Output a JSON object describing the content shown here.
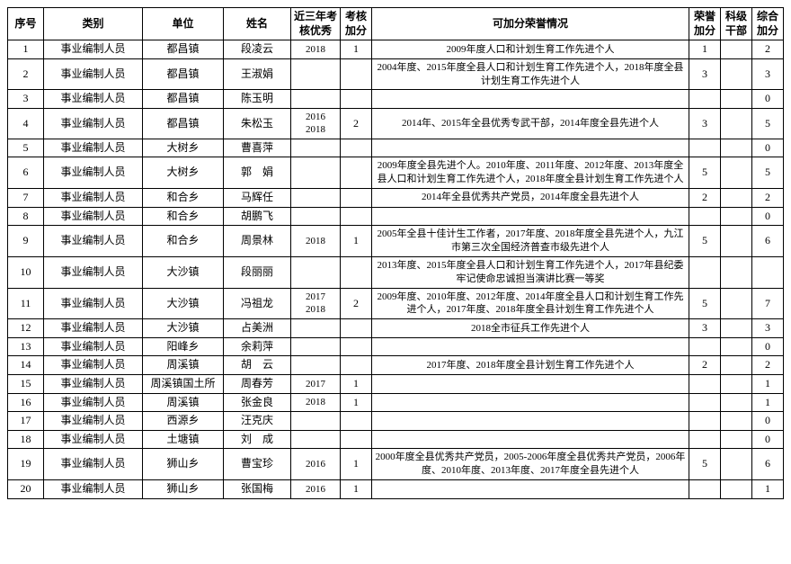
{
  "headers": {
    "seq": "序号",
    "category": "类别",
    "unit": "单位",
    "name": "姓名",
    "years": "近三年考核优秀",
    "score": "考核加分",
    "honor": "可加分荣誉情况",
    "bonus1": "荣誉加分",
    "bonus2": "科级干部",
    "bonus3": "综合加分"
  },
  "rows": [
    {
      "seq": "1",
      "category": "事业编制人员",
      "unit": "都昌镇",
      "name": "段凌云",
      "years": "2018",
      "score": "1",
      "honor": "2009年度人口和计划生育工作先进个人",
      "bonus1": "1",
      "bonus2": "",
      "bonus3": "2"
    },
    {
      "seq": "2",
      "category": "事业编制人员",
      "unit": "都昌镇",
      "name": "王淑娟",
      "years": "",
      "score": "",
      "honor": "2004年度、2015年度全县人口和计划生育工作先进个人，2018年度全县计划生育工作先进个人",
      "bonus1": "3",
      "bonus2": "",
      "bonus3": "3"
    },
    {
      "seq": "3",
      "category": "事业编制人员",
      "unit": "都昌镇",
      "name": "陈玉明",
      "years": "",
      "score": "",
      "honor": "",
      "bonus1": "",
      "bonus2": "",
      "bonus3": "0"
    },
    {
      "seq": "4",
      "category": "事业编制人员",
      "unit": "都昌镇",
      "name": "朱松玉",
      "years": "2016\n2018",
      "score": "2",
      "honor": "2014年、2015年全县优秀专武干部，2014年度全县先进个人",
      "bonus1": "3",
      "bonus2": "",
      "bonus3": "5"
    },
    {
      "seq": "5",
      "category": "事业编制人员",
      "unit": "大树乡",
      "name": "曹喜萍",
      "years": "",
      "score": "",
      "honor": "",
      "bonus1": "",
      "bonus2": "",
      "bonus3": "0"
    },
    {
      "seq": "6",
      "category": "事业编制人员",
      "unit": "大树乡",
      "name": "郭　娟",
      "years": "",
      "score": "",
      "honor": "2009年度全县先进个人。2010年度、2011年度、2012年度、2013年度全县人口和计划生育工作先进个人，2018年度全县计划生育工作先进个人",
      "bonus1": "5",
      "bonus2": "",
      "bonus3": "5"
    },
    {
      "seq": "7",
      "category": "事业编制人员",
      "unit": "和合乡",
      "name": "马辉任",
      "years": "",
      "score": "",
      "honor": "2014年全县优秀共产党员，2014年度全县先进个人",
      "bonus1": "2",
      "bonus2": "",
      "bonus3": "2"
    },
    {
      "seq": "8",
      "category": "事业编制人员",
      "unit": "和合乡",
      "name": "胡鹏飞",
      "years": "",
      "score": "",
      "honor": "",
      "bonus1": "",
      "bonus2": "",
      "bonus3": "0"
    },
    {
      "seq": "9",
      "category": "事业编制人员",
      "unit": "和合乡",
      "name": "周景林",
      "years": "2018",
      "score": "1",
      "honor": "2005年全县十佳计生工作者，2017年度、2018年度全县先进个人，九江市第三次全国经济普查市级先进个人",
      "bonus1": "5",
      "bonus2": "",
      "bonus3": "6"
    },
    {
      "seq": "10",
      "category": "事业编制人员",
      "unit": "大沙镇",
      "name": "段丽丽",
      "years": "",
      "score": "",
      "honor": "2013年度、2015年度全县人口和计划生育工作先进个人，2017年县纪委牢记使命忠诚担当演讲比赛一等奖",
      "bonus1": "",
      "bonus2": "",
      "bonus3": ""
    },
    {
      "seq": "11",
      "category": "事业编制人员",
      "unit": "大沙镇",
      "name": "冯祖龙",
      "years": "2017\n2018",
      "score": "2",
      "honor": "2009年度、2010年度、2012年度、2014年度全县人口和计划生育工作先进个人，2017年度、2018年度全县计划生育工作先进个人",
      "bonus1": "5",
      "bonus2": "",
      "bonus3": "7"
    },
    {
      "seq": "12",
      "category": "事业编制人员",
      "unit": "大沙镇",
      "name": "占美洲",
      "years": "",
      "score": "",
      "honor": "2018全市征兵工作先进个人",
      "bonus1": "3",
      "bonus2": "",
      "bonus3": "3"
    },
    {
      "seq": "13",
      "category": "事业编制人员",
      "unit": "阳峰乡",
      "name": "余莉萍",
      "years": "",
      "score": "",
      "honor": "",
      "bonus1": "",
      "bonus2": "",
      "bonus3": "0"
    },
    {
      "seq": "14",
      "category": "事业编制人员",
      "unit": "周溪镇",
      "name": "胡　云",
      "years": "",
      "score": "",
      "honor": "2017年度、2018年度全县计划生育工作先进个人",
      "bonus1": "2",
      "bonus2": "",
      "bonus3": "2"
    },
    {
      "seq": "15",
      "category": "事业编制人员",
      "unit": "周溪镇国土所",
      "name": "周春芳",
      "years": "2017",
      "score": "1",
      "honor": "",
      "bonus1": "",
      "bonus2": "",
      "bonus3": "1"
    },
    {
      "seq": "16",
      "category": "事业编制人员",
      "unit": "周溪镇",
      "name": "张金良",
      "years": "2018",
      "score": "1",
      "honor": "",
      "bonus1": "",
      "bonus2": "",
      "bonus3": "1"
    },
    {
      "seq": "17",
      "category": "事业编制人员",
      "unit": "西源乡",
      "name": "汪克庆",
      "years": "",
      "score": "",
      "honor": "",
      "bonus1": "",
      "bonus2": "",
      "bonus3": "0"
    },
    {
      "seq": "18",
      "category": "事业编制人员",
      "unit": "土塘镇",
      "name": "刘　成",
      "years": "",
      "score": "",
      "honor": "",
      "bonus1": "",
      "bonus2": "",
      "bonus3": "0"
    },
    {
      "seq": "19",
      "category": "事业编制人员",
      "unit": "狮山乡",
      "name": "曹宝珍",
      "years": "2016",
      "score": "1",
      "honor": "2000年度全县优秀共产党员，2005-2006年度全县优秀共产党员，2006年度、2010年度、2013年度、2017年度全县先进个人",
      "bonus1": "5",
      "bonus2": "",
      "bonus3": "6"
    },
    {
      "seq": "20",
      "category": "事业编制人员",
      "unit": "狮山乡",
      "name": "张国梅",
      "years": "2016",
      "score": "1",
      "honor": "",
      "bonus1": "",
      "bonus2": "",
      "bonus3": "1"
    }
  ]
}
